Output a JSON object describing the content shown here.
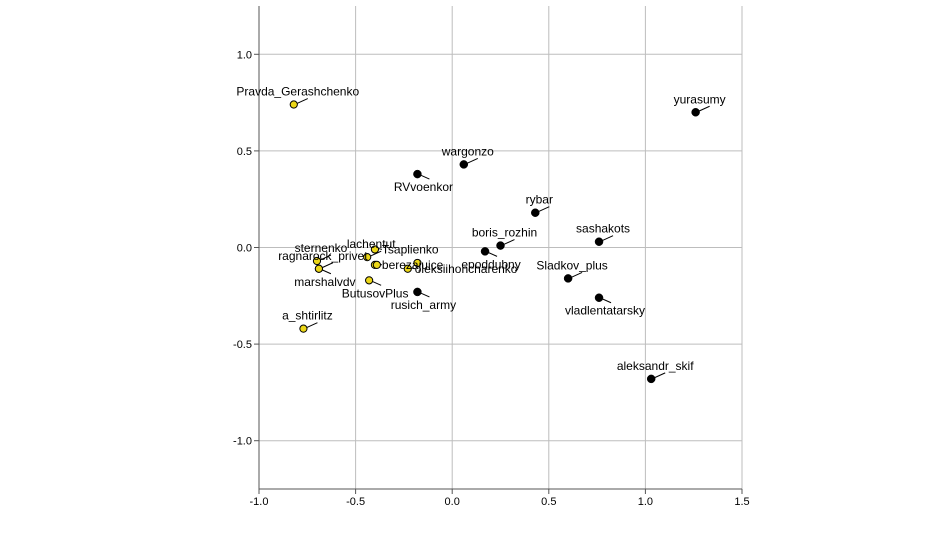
{
  "chart_data": {
    "type": "scatter",
    "title": "",
    "xlabel": "",
    "ylabel": "",
    "xlim": [
      -1.0,
      1.5
    ],
    "ylim": [
      -1.25,
      1.25
    ],
    "x_ticks": [
      -1.0,
      -0.5,
      0.0,
      0.5,
      1.0,
      1.5
    ],
    "x_tick_labels": [
      "-1.0",
      "-0.5",
      "0.0",
      "0.5",
      "1.0",
      "1.5"
    ],
    "y_ticks": [
      1.0,
      0.5,
      0.0,
      -0.5,
      -1.0
    ],
    "y_tick_labels": [
      "1.0",
      "0.5",
      "0.0",
      "-0.5",
      "-1.0"
    ],
    "grid": true,
    "colors": {
      "group_a": "#ecd718",
      "group_b": "#000000",
      "grid": "#bdbdbd",
      "axis": "#555555"
    },
    "points": [
      {
        "label": "Pravda_Gerashchenko",
        "x": -0.82,
        "y": 0.74,
        "group": "group_a",
        "label_pos": "above"
      },
      {
        "label": "sternenko",
        "x": -0.7,
        "y": -0.07,
        "group": "group_a",
        "label_pos": "above"
      },
      {
        "label": "ragnarock_privet",
        "x": -0.69,
        "y": -0.11,
        "group": "group_a",
        "label_pos": "above"
      },
      {
        "label": "marshalvdv",
        "x": -0.69,
        "y": -0.11,
        "group": "group_a",
        "label_pos": "below"
      },
      {
        "label": "a_shtirlitz",
        "x": -0.77,
        "y": -0.42,
        "group": "group_a",
        "label_pos": "above"
      },
      {
        "label": "lachentut",
        "x": -0.44,
        "y": -0.05,
        "group": "group_a",
        "label_pos": "above"
      },
      {
        "label": "Tsaplienko",
        "x": -0.4,
        "y": -0.01,
        "group": "group_a",
        "label_pos": "right"
      },
      {
        "label": "ButusovPlus",
        "x": -0.43,
        "y": -0.17,
        "group": "group_a",
        "label_pos": "below"
      },
      {
        "label": "berezajuice",
        "x": -0.4,
        "y": -0.09,
        "group": "group_a",
        "label_pos": "right"
      },
      {
        "label": "oleksiihoncharenko",
        "x": -0.23,
        "y": -0.11,
        "group": "group_a",
        "label_pos": "right"
      },
      {
        "label": "RVvoenkor",
        "x": -0.18,
        "y": 0.38,
        "group": "group_b",
        "label_pos": "below"
      },
      {
        "label": "wargonzo",
        "x": 0.06,
        "y": 0.43,
        "group": "group_b",
        "label_pos": "above"
      },
      {
        "label": "rusich_army",
        "x": -0.18,
        "y": -0.23,
        "group": "group_b",
        "label_pos": "below"
      },
      {
        "label": "epoddubny",
        "x": 0.17,
        "y": -0.02,
        "group": "group_b",
        "label_pos": "below"
      },
      {
        "label": "boris_rozhin",
        "x": 0.25,
        "y": 0.01,
        "group": "group_b",
        "label_pos": "above"
      },
      {
        "label": "rybar",
        "x": 0.43,
        "y": 0.18,
        "group": "group_b",
        "label_pos": "above"
      },
      {
        "label": "sashakots",
        "x": 0.76,
        "y": 0.03,
        "group": "group_b",
        "label_pos": "above"
      },
      {
        "label": "Sladkov_plus",
        "x": 0.6,
        "y": -0.16,
        "group": "group_b",
        "label_pos": "above"
      },
      {
        "label": "vladlentatarsky",
        "x": 0.76,
        "y": -0.26,
        "group": "group_b",
        "label_pos": "below"
      },
      {
        "label": "yurasumy",
        "x": 1.26,
        "y": 0.7,
        "group": "group_b",
        "label_pos": "above"
      },
      {
        "label": "aleksandr_skif",
        "x": 1.03,
        "y": -0.68,
        "group": "group_b",
        "label_pos": "above"
      },
      {
        "label": "",
        "x": -0.18,
        "y": -0.08,
        "group": "group_a",
        "label_pos": "none"
      },
      {
        "label": "",
        "x": -0.39,
        "y": -0.09,
        "group": "group_a",
        "label_pos": "none"
      }
    ]
  }
}
